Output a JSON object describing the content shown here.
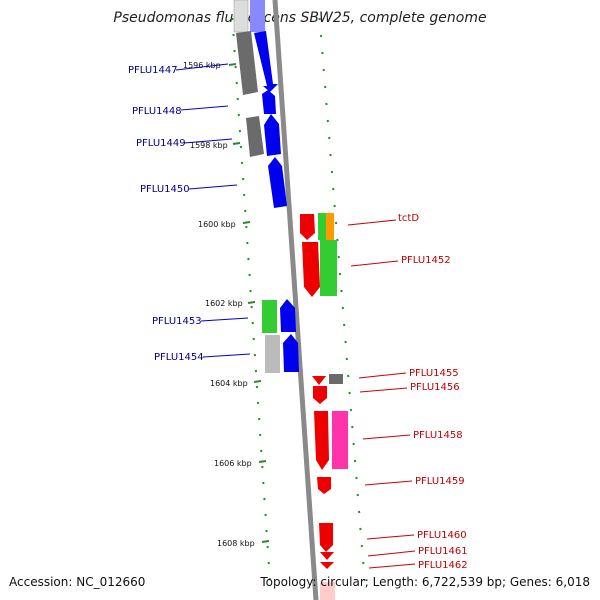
{
  "title": "Pseudomonas fluorescens SBW25, complete genome",
  "footer": {
    "accession": "Accession: NC_012660",
    "info": "Topology: circular; Length: 6,722,539 bp; Genes: 6,018"
  },
  "colors": {
    "forward": "#0000ff",
    "reverse": "#ff0000",
    "green": "#33cc33",
    "gray": "#777777",
    "lightgray": "#bbbbbb",
    "orange": "#ff9900",
    "pink": "#ff33aa",
    "label_left": "#00008b",
    "label_right": "#c00000"
  },
  "ticks": [
    "1596 kbp",
    "1598 kbp",
    "1600 kbp",
    "1602 kbp",
    "1604 kbp",
    "1606 kbp",
    "1608 kbp"
  ],
  "left_labels": [
    "PFLU1447",
    "PFLU1448",
    "PFLU1449",
    "PFLU1450",
    "PFLU1453",
    "PFLU1454"
  ],
  "right_labels": [
    "tctD",
    "PFLU1452",
    "PFLU1455",
    "PFLU1456",
    "PFLU1458",
    "PFLU1459",
    "PFLU1460",
    "PFLU1461",
    "PFLU1462"
  ]
}
